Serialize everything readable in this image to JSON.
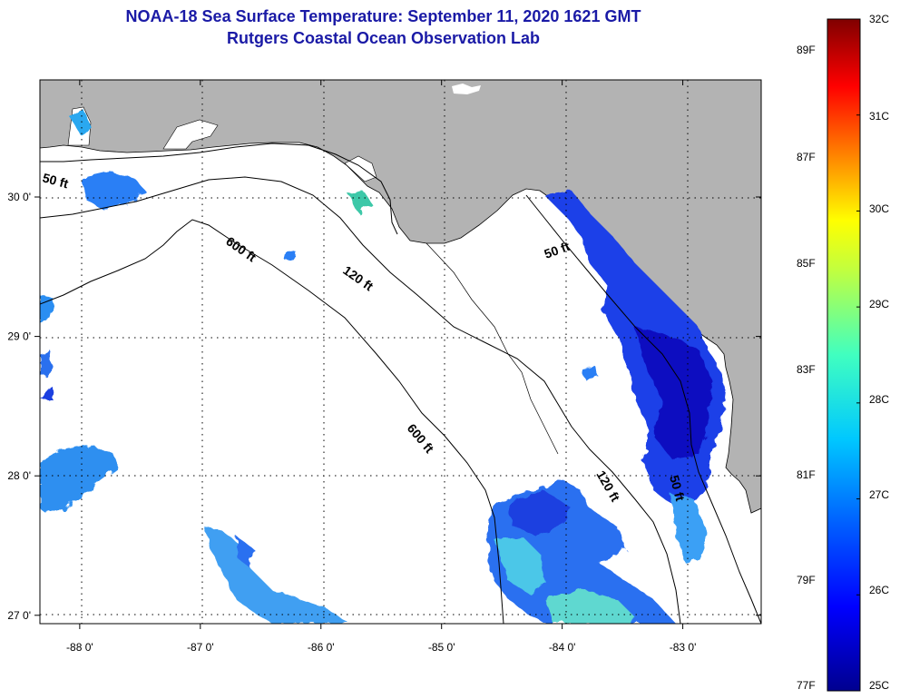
{
  "title": "NOAA-18 Sea Surface Temperature:  September 11, 2020 1621 GMT",
  "subtitle": "Rutgers Coastal Ocean Observation Lab",
  "map": {
    "lon_range": [
      -88.33,
      -82.35
    ],
    "lat_range": [
      26.94,
      30.84
    ],
    "lon_ticks": [
      {
        "value": -88,
        "label": "-88 0'"
      },
      {
        "value": -87,
        "label": "-87 0'"
      },
      {
        "value": -86,
        "label": "-86 0'"
      },
      {
        "value": -85,
        "label": "-85 0'"
      },
      {
        "value": -84,
        "label": "-84 0'"
      },
      {
        "value": -83,
        "label": "-83 0'"
      }
    ],
    "lat_ticks": [
      {
        "value": 30,
        "label": "30 0'"
      },
      {
        "value": 29,
        "label": "29 0'"
      },
      {
        "value": 28,
        "label": "28 0'"
      },
      {
        "value": 27,
        "label": "27 0'"
      }
    ],
    "land_color": "#b3b3b3",
    "water_color": "#ffffff",
    "contour_labels": [
      "50 ft",
      "600 ft",
      "120 ft",
      "50 ft",
      "600 ft",
      "120 ft",
      "50 ft"
    ]
  },
  "colorbar": {
    "colors": [
      "#00008f",
      "#0000ff",
      "#0080ff",
      "#00ffff",
      "#80ff80",
      "#ffff00",
      "#ff8000",
      "#ff0000",
      "#800000"
    ],
    "celsius_labels": [
      "32C",
      "31C",
      "30C",
      "29C",
      "28C",
      "27C",
      "26C",
      "25C"
    ],
    "fahrenheit_labels": [
      "89F",
      "87F",
      "85F",
      "83F",
      "81F",
      "79F",
      "77F"
    ]
  }
}
